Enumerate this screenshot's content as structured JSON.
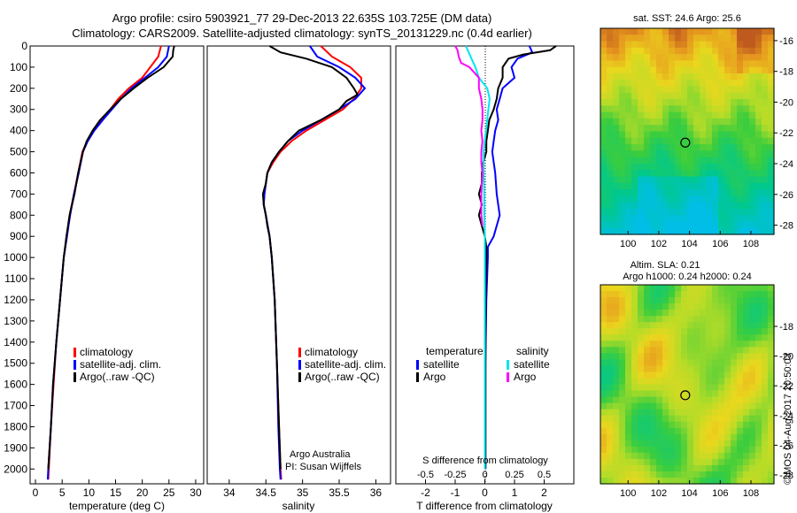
{
  "header": {
    "title_line1": "Argo profile: csiro 5903921_77 29-Dec-2013 22.635S 103.725E (DM data)",
    "title_line2": "Climatology: CARS2009. Satellite-adjusted climatology: synTS_20131229.nc (0.4d earlier)"
  },
  "colors": {
    "climatology": "#ff0000",
    "satellite": "#0000ff",
    "argo": "#000000",
    "salinity_satellite": "#00e5ee",
    "salinity_argo": "#ff00ff"
  },
  "depth_ticks": [
    0,
    100,
    200,
    300,
    400,
    500,
    600,
    700,
    800,
    900,
    1000,
    1100,
    1200,
    1300,
    1400,
    1500,
    1600,
    1700,
    1800,
    1900,
    2000
  ],
  "chart_data": [
    {
      "type": "line",
      "xlabel": "temperature (deg C)",
      "xlim": [
        -1,
        31.5
      ],
      "ylim": [
        2070,
        0
      ],
      "xticks": [
        0,
        5,
        10,
        15,
        20,
        25,
        30
      ],
      "legend": [
        "climatology",
        "satellite-adj. clim.",
        "Argo(..raw -QC)"
      ],
      "series": [
        {
          "name": "climatology",
          "depth": [
            0,
            50,
            100,
            150,
            200,
            250,
            300,
            350,
            400,
            450,
            500,
            600,
            700,
            800,
            900,
            1000,
            1200,
            1400,
            1600,
            1800,
            2000,
            2050
          ],
          "values": [
            23.5,
            23,
            21.5,
            20,
            17.5,
            15.5,
            14,
            12.3,
            10.8,
            9.7,
            8.8,
            8,
            7.2,
            6.4,
            5.9,
            5.3,
            4.6,
            3.9,
            3.4,
            2.9,
            2.5,
            2.4
          ]
        },
        {
          "name": "satellite-adj. clim.",
          "depth": [
            0,
            50,
            100,
            150,
            200,
            250,
            300,
            350,
            400,
            450,
            500,
            600,
            700,
            800,
            900,
            1000,
            1200,
            1400,
            1600,
            1800,
            2000,
            2050
          ],
          "values": [
            25,
            24.6,
            23,
            20.5,
            18,
            16,
            14.3,
            12.6,
            11,
            9.8,
            8.9,
            8.1,
            7.2,
            6.5,
            5.9,
            5.3,
            4.6,
            3.9,
            3.3,
            2.9,
            2.4,
            2.3
          ]
        },
        {
          "name": "Argo(..raw -QC)",
          "depth": [
            0,
            20,
            50,
            100,
            150,
            200,
            250,
            300,
            350,
            400,
            450,
            500,
            600,
            700,
            800,
            900,
            1000,
            1200,
            1400,
            1600,
            1800,
            2000
          ],
          "values": [
            26,
            25.8,
            25.7,
            24,
            21,
            18.4,
            16,
            14,
            12.1,
            10.7,
            9.6,
            8.9,
            8,
            7.3,
            6.4,
            5.8,
            5.3,
            4.6,
            3.9,
            3.3,
            2.9,
            2.4
          ]
        }
      ]
    },
    {
      "type": "line",
      "xlabel": "salinity",
      "xlim": [
        33.7,
        36.2
      ],
      "ylim": [
        2070,
        0
      ],
      "xticks": [
        34,
        34.5,
        35,
        35.5,
        36
      ],
      "legend": [
        "climatology",
        "satellite-adj. clim.",
        "Argo(..raw -QC)"
      ],
      "annotations": [
        "Argo Australia",
        "PI: Susan Wijffels"
      ],
      "series": [
        {
          "name": "climatology",
          "depth": [
            0,
            50,
            100,
            150,
            200,
            250,
            300,
            350,
            400,
            450,
            500,
            550,
            600,
            700,
            750,
            800,
            900,
            1000,
            1200,
            1500,
            1800,
            2000,
            2050
          ],
          "values": [
            35.25,
            35.4,
            35.65,
            35.8,
            35.8,
            35.7,
            35.55,
            35.3,
            35.05,
            34.85,
            34.7,
            34.6,
            34.52,
            34.48,
            34.47,
            34.5,
            34.55,
            34.58,
            34.62,
            34.65,
            34.68,
            34.7,
            34.71
          ]
        },
        {
          "name": "satellite-adj. clim.",
          "depth": [
            0,
            50,
            100,
            150,
            200,
            250,
            300,
            350,
            400,
            450,
            500,
            550,
            600,
            700,
            750,
            800,
            900,
            1000,
            1200,
            1500,
            1800,
            2000,
            2050
          ],
          "values": [
            35.1,
            35.2,
            35.5,
            35.72,
            35.85,
            35.72,
            35.5,
            35.25,
            35,
            34.8,
            34.68,
            34.58,
            34.52,
            34.48,
            34.47,
            34.5,
            34.55,
            34.58,
            34.62,
            34.65,
            34.67,
            34.69,
            34.7
          ]
        },
        {
          "name": "Argo(..raw -QC)",
          "depth": [
            0,
            30,
            60,
            100,
            150,
            200,
            230,
            260,
            300,
            350,
            400,
            450,
            500,
            550,
            600,
            650,
            700,
            750,
            800,
            850,
            900,
            1000,
            1200,
            1500,
            1800,
            2000
          ],
          "values": [
            34.55,
            34.7,
            35.05,
            35.4,
            35.6,
            35.7,
            35.75,
            35.6,
            35.5,
            35.25,
            34.95,
            34.8,
            34.68,
            34.58,
            34.52,
            34.5,
            34.46,
            34.47,
            34.5,
            34.52,
            34.55,
            34.58,
            34.62,
            34.65,
            34.68,
            34.7
          ]
        }
      ]
    },
    {
      "type": "line",
      "xlabel": "T difference from climatology",
      "x2label": "S difference from climatology",
      "xlim": [
        -3,
        3
      ],
      "ylim": [
        2070,
        0
      ],
      "xticks": [
        -2,
        -1,
        0,
        1,
        2
      ],
      "xticklabels": [
        "-2",
        "-1",
        "0",
        "1",
        "2"
      ],
      "x2ticks": [
        -0.5,
        -0.25,
        0,
        0.25,
        0.5
      ],
      "x2ticklabels": [
        "-0.5",
        "-0.25",
        "0",
        "0.25",
        "0.5"
      ],
      "x2scale": 4,
      "legend_groups": [
        {
          "title": "temperature",
          "items": [
            "satellite",
            "Argo"
          ]
        },
        {
          "title": "salinity",
          "items": [
            "satellite",
            "Argo"
          ]
        }
      ],
      "series": [
        {
          "name": "satellite",
          "group": "temperature",
          "depth": [
            0,
            30,
            60,
            100,
            150,
            200,
            250,
            300,
            350,
            400,
            450,
            500,
            550,
            600,
            700,
            800,
            900,
            950,
            1000,
            1200,
            1500,
            1800,
            2000
          ],
          "values": [
            1.5,
            1.6,
            1.1,
            0.9,
            1,
            0.6,
            0.5,
            0.4,
            0.45,
            0.35,
            0.3,
            0.25,
            0.3,
            0.35,
            0.4,
            0.5,
            0.3,
            0.1,
            0.1,
            0.05,
            0.02,
            0.02,
            0.02
          ]
        },
        {
          "name": "Argo",
          "group": "temperature",
          "depth": [
            0,
            20,
            40,
            60,
            100,
            150,
            200,
            250,
            300,
            350,
            400,
            450,
            500,
            550,
            600,
            650,
            700,
            750,
            800,
            850,
            900,
            950,
            1000,
            1200,
            1500,
            1800,
            2000
          ],
          "values": [
            2.4,
            2.2,
            1.3,
            0.8,
            0.6,
            0.6,
            0.45,
            0.4,
            0.3,
            0.15,
            0.1,
            0.05,
            0.05,
            -0.05,
            -0.1,
            -0.1,
            -0.2,
            -0.1,
            -0.2,
            -0.1,
            0,
            0.05,
            0.05,
            0.03,
            0.02,
            0.02,
            0.02
          ]
        },
        {
          "name": "satellite",
          "group": "salinity",
          "depth": [
            0,
            50,
            100,
            150,
            200,
            250,
            300,
            400,
            500,
            600,
            700,
            800,
            900,
            1000,
            1200,
            1500,
            1800,
            2000
          ],
          "values": [
            -0.16,
            -0.12,
            -0.08,
            -0.05,
            0.02,
            0.04,
            0.03,
            0.01,
            -0.01,
            -0.01,
            -0.005,
            -0.005,
            0,
            0,
            0,
            0,
            0,
            0
          ]
        },
        {
          "name": "Argo",
          "group": "salinity",
          "depth": [
            0,
            20,
            50,
            80,
            100,
            150,
            200,
            250,
            300,
            350,
            400,
            450,
            500,
            550,
            600,
            700,
            800,
            850
          ],
          "values": [
            -0.25,
            -0.23,
            -0.22,
            -0.2,
            -0.13,
            -0.05,
            -0.05,
            -0.03,
            -0.02,
            -0.02,
            -0.03,
            -0.02,
            -0.03,
            -0.03,
            -0.02,
            -0.03,
            -0.03,
            -0.02
          ]
        }
      ]
    },
    {
      "type": "heatmap",
      "title": "sat. SST: 24.6  Argo: 25.6",
      "xlim": [
        98.2,
        109.5
      ],
      "ylim": [
        -28.6,
        -15.2
      ],
      "xticks": [
        100,
        102,
        104,
        106,
        108
      ],
      "yticks": [
        -16,
        -18,
        -20,
        -22,
        -24,
        -26,
        -28
      ],
      "marker": {
        "lon": 103.725,
        "lat": -22.635
      }
    },
    {
      "type": "heatmap",
      "title_line1": "Altim. SLA: 0.21",
      "title_line2": "Argo h1000: 0.24  h2000: 0.24",
      "xlim": [
        98.2,
        109.5
      ],
      "ylim": [
        -28.6,
        -15.2
      ],
      "xticks": [
        100,
        102,
        104,
        106,
        108
      ],
      "yticks": [
        -18,
        -20,
        -22,
        -24,
        -26,
        -28
      ],
      "marker": {
        "lon": 103.725,
        "lat": -22.635
      }
    }
  ],
  "footer": {
    "credit": "©IMOS 04-Aug-2017 20:50:03"
  }
}
